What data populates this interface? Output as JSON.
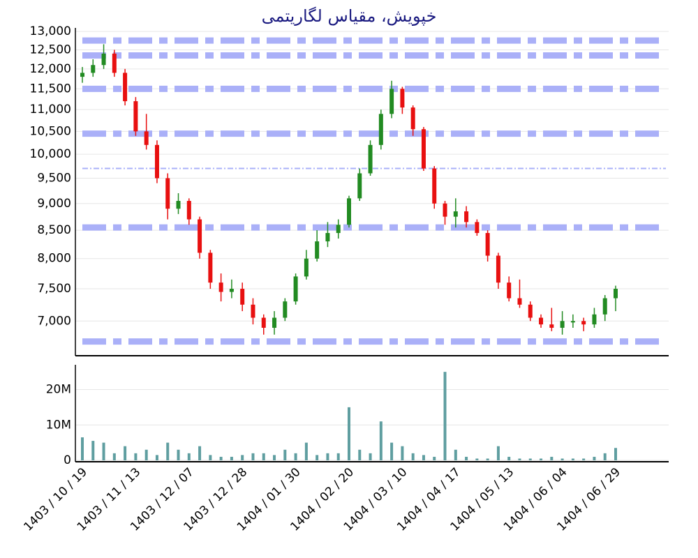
{
  "chart_data": {
    "type": "candlestick",
    "title": "خپویش، مقیاس لگاریتمی",
    "log_scale": true,
    "grid": true,
    "up_color": "#228b22",
    "down_color": "#e81010",
    "volume_color": "#5f9ea0",
    "level_color": "#aab0f8",
    "categories": [
      "1403 / 10 / 19",
      null,
      null,
      null,
      null,
      "1403 / 11 / 13",
      null,
      null,
      null,
      null,
      "1403 / 12 / 07",
      null,
      null,
      null,
      null,
      "1403 / 12 / 28",
      null,
      null,
      null,
      null,
      "1404 / 01 / 30",
      null,
      null,
      null,
      null,
      "1404 / 02 / 20",
      null,
      null,
      null,
      null,
      "1404 / 03 / 10",
      null,
      null,
      null,
      null,
      "1404 / 04 / 17",
      null,
      null,
      null,
      null,
      "1404 / 05 / 13",
      null,
      null,
      null,
      null,
      "1404 / 06 / 04",
      null,
      null,
      null,
      null,
      "1404 / 06 / 29"
    ],
    "open": [
      11800,
      11900,
      12100,
      12400,
      11900,
      11200,
      10500,
      10200,
      9500,
      8900,
      9050,
      8700,
      8100,
      7600,
      7450,
      7500,
      7250,
      7050,
      6900,
      7050,
      7300,
      7700,
      8000,
      8300,
      8450,
      8600,
      9100,
      9600,
      10200,
      10900,
      11500,
      11050,
      10550,
      9700,
      9000,
      8750,
      8850,
      8650,
      8450,
      8050,
      7600,
      7350,
      7250,
      7050,
      6950,
      6900,
      7000,
      7000,
      6950,
      7100,
      7350
    ],
    "high": [
      12050,
      12250,
      12650,
      12500,
      12000,
      11300,
      10900,
      10300,
      9600,
      9200,
      9100,
      8750,
      8150,
      7750,
      7650,
      7600,
      7350,
      7100,
      7150,
      7350,
      7750,
      8150,
      8500,
      8650,
      8700,
      9150,
      9700,
      10300,
      11000,
      11700,
      11550,
      11100,
      10600,
      9750,
      9050,
      9100,
      8950,
      8700,
      8500,
      8100,
      7700,
      7650,
      7300,
      7100,
      7200,
      7150,
      7100,
      7050,
      7200,
      7400,
      7550
    ],
    "low": [
      11650,
      11800,
      12000,
      11800,
      11100,
      10400,
      10100,
      9400,
      8700,
      8800,
      8600,
      8000,
      7500,
      7300,
      7350,
      7150,
      6950,
      6800,
      6800,
      7000,
      7250,
      7650,
      7950,
      8200,
      8350,
      8550,
      9050,
      9550,
      10100,
      10800,
      10900,
      10400,
      9650,
      8900,
      8600,
      8550,
      8550,
      8400,
      7950,
      7500,
      7300,
      7200,
      7000,
      6900,
      6850,
      6800,
      6900,
      6850,
      6900,
      7000,
      7150
    ],
    "close": [
      11900,
      12100,
      12400,
      11900,
      11200,
      10500,
      10200,
      9500,
      8900,
      9050,
      8700,
      8100,
      7600,
      7450,
      7500,
      7250,
      7050,
      6900,
      7050,
      7300,
      7700,
      8000,
      8300,
      8450,
      8600,
      9100,
      9600,
      10200,
      10900,
      11500,
      11050,
      10550,
      9700,
      9000,
      8750,
      8850,
      8650,
      8450,
      8050,
      7600,
      7350,
      7250,
      7050,
      6950,
      6900,
      7000,
      7000,
      6950,
      7100,
      7350,
      7500
    ],
    "volume": [
      6500000,
      5500000,
      5000000,
      2000000,
      4000000,
      2000000,
      3000000,
      1500000,
      5000000,
      3000000,
      2000000,
      4000000,
      1500000,
      1000000,
      1000000,
      1500000,
      2000000,
      2000000,
      1500000,
      3000000,
      2000000,
      5000000,
      1500000,
      2000000,
      2000000,
      15000000,
      3000000,
      2000000,
      11000000,
      5000000,
      4000000,
      2000000,
      1500000,
      1000000,
      25000000,
      3000000,
      1000000,
      500000,
      500000,
      4000000,
      1000000,
      500000,
      500000,
      500000,
      1000000,
      500000,
      500000,
      500000,
      1000000,
      2000000,
      3500000
    ],
    "levels": [
      12750,
      12350,
      11500,
      10450,
      8550,
      6700
    ],
    "minor_levels": [
      9700
    ],
    "ylim": [
      6500,
      13100
    ],
    "yticks": [
      {
        "value": 7000,
        "label": "7,000"
      },
      {
        "value": 7500,
        "label": "7,500"
      },
      {
        "value": 8000,
        "label": "8,000"
      },
      {
        "value": 8500,
        "label": "8,500"
      },
      {
        "value": 9000,
        "label": "9,000"
      },
      {
        "value": 9500,
        "label": "9,500"
      },
      {
        "value": 10000,
        "label": "10,000"
      },
      {
        "value": 10500,
        "label": "10,500"
      },
      {
        "value": 11000,
        "label": "11,000"
      },
      {
        "value": 11500,
        "label": "11,500"
      },
      {
        "value": 12000,
        "label": "12,000"
      },
      {
        "value": 12500,
        "label": "12,500"
      },
      {
        "value": 13000,
        "label": "13,000"
      }
    ],
    "y2lim": [
      0,
      27000000
    ],
    "y2ticks": [
      0,
      {
        "value": 10000000,
        "label": "10M"
      },
      {
        "value": 20000000,
        "label": "20M"
      }
    ]
  }
}
